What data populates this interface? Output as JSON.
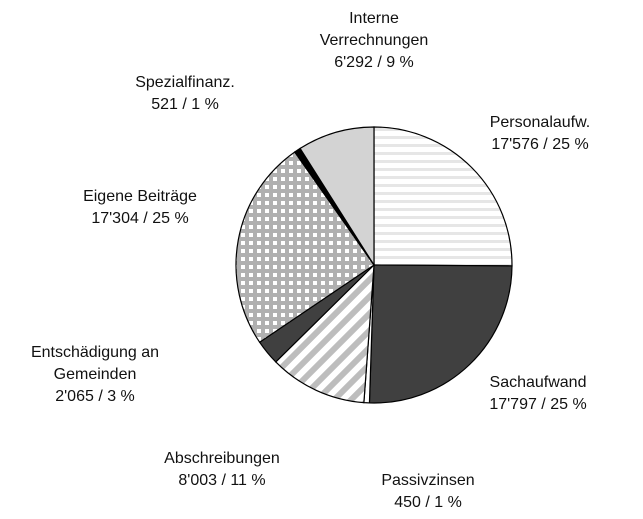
{
  "chart_data": {
    "type": "pie",
    "categories": [
      "Personalaufw.",
      "Sachaufwand",
      "Passivzinsen",
      "Abschreibungen",
      "Entschädigung an Gemeinden",
      "Eigene Beiträge",
      "Spezialfinanz.",
      "Interne Verrechnungen"
    ],
    "values": [
      17576,
      17797,
      450,
      8003,
      2065,
      17304,
      521,
      6292
    ],
    "value_labels": [
      "17'576 / 25 %",
      "17'797 / 25 %",
      "450 / 1 %",
      "8'003 / 11 %",
      "2'065 / 3 %",
      "17'304 / 25 %",
      "521 / 1 %",
      "6'292 / 9 %"
    ],
    "colors": [
      "#e6e6e6",
      "#404040",
      "#ffffff",
      "#bdbdbd",
      "#404040",
      "#b0b0b0",
      "#000000",
      "#d3d3d3"
    ],
    "patterns": [
      "hstripe",
      "solid",
      "solid",
      "diagonal",
      "solid",
      "grid",
      "solid",
      "solid"
    ]
  }
}
